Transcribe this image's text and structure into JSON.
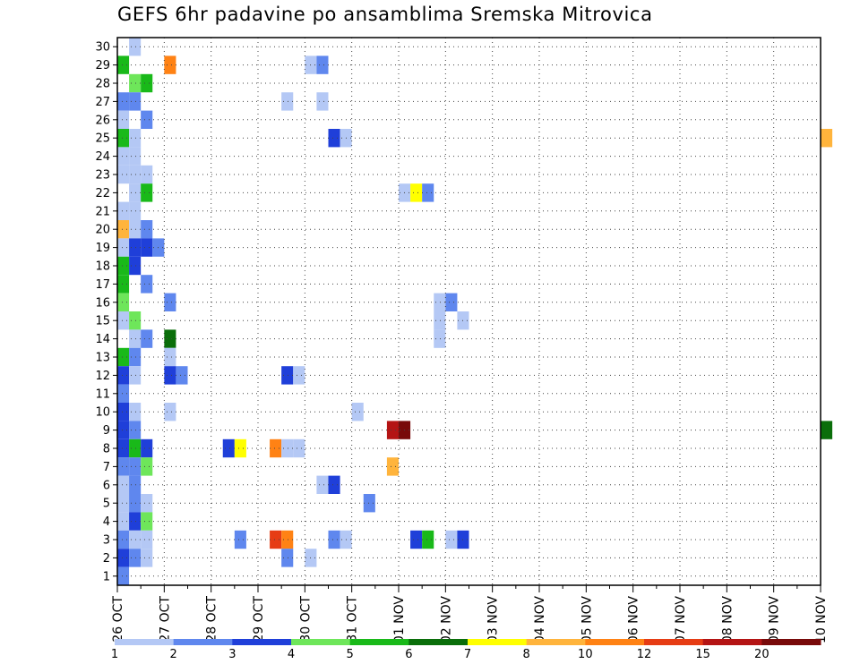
{
  "chart_data": {
    "type": "heatmap",
    "title": "GEFS 6hr padavine po ansamblima Sremska Mitrovica",
    "xlabel": "",
    "ylabel": "",
    "x_ticks": [
      "26 OCT",
      "27 OCT",
      "28 OCT",
      "29 OCT",
      "30 OCT",
      "31 OCT",
      "01 NOV",
      "02 NOV",
      "03 NOV",
      "04 NOV",
      "05 NOV",
      "06 NOV",
      "07 NOV",
      "08 NOV",
      "09 NOV",
      "10 NOV"
    ],
    "xlim": [
      0,
      60
    ],
    "steps_per_day": 4,
    "y_ticks": [
      1,
      2,
      3,
      4,
      5,
      6,
      7,
      8,
      9,
      10,
      11,
      12,
      13,
      14,
      15,
      16,
      17,
      18,
      19,
      20,
      21,
      22,
      23,
      24,
      25,
      26,
      27,
      28,
      29,
      30
    ],
    "ylim": [
      0.5,
      30.5
    ],
    "grid": true,
    "legend": {
      "placement": "bottom",
      "labels": [
        "1",
        "2",
        "3",
        "4",
        "5",
        "6",
        "7",
        "8",
        "10",
        "12",
        "15",
        "20"
      ],
      "colors": [
        "#b4c8f5",
        "#5f87ee",
        "#1f3fd9",
        "#6ee65a",
        "#19b919",
        "#0a6e0a",
        "#ffff00",
        "#ffb43c",
        "#ff8214",
        "#e63c14",
        "#b41414",
        "#780a0a"
      ]
    },
    "cells": [
      {
        "member": 30,
        "step": 1,
        "value": 1
      },
      {
        "member": 29,
        "step": 0,
        "value": 5
      },
      {
        "member": 29,
        "step": 4,
        "value": 10
      },
      {
        "member": 29,
        "step": 16,
        "value": 1
      },
      {
        "member": 29,
        "step": 17,
        "value": 2
      },
      {
        "member": 28,
        "step": 1,
        "value": 4
      },
      {
        "member": 28,
        "step": 2,
        "value": 5
      },
      {
        "member": 27,
        "step": 0,
        "value": 2
      },
      {
        "member": 27,
        "step": 1,
        "value": 2
      },
      {
        "member": 27,
        "step": 14,
        "value": 1
      },
      {
        "member": 27,
        "step": 17,
        "value": 1
      },
      {
        "member": 26,
        "step": 0,
        "value": 1
      },
      {
        "member": 26,
        "step": 2,
        "value": 2
      },
      {
        "member": 25,
        "step": 0,
        "value": 5
      },
      {
        "member": 25,
        "step": 1,
        "value": 1
      },
      {
        "member": 25,
        "step": 18,
        "value": 3
      },
      {
        "member": 25,
        "step": 19,
        "value": 1
      },
      {
        "member": 25,
        "step": 60,
        "value": 8
      },
      {
        "member": 24,
        "step": 0,
        "value": 1
      },
      {
        "member": 24,
        "step": 1,
        "value": 1
      },
      {
        "member": 23,
        "step": 0,
        "value": 1
      },
      {
        "member": 23,
        "step": 1,
        "value": 1
      },
      {
        "member": 23,
        "step": 2,
        "value": 1
      },
      {
        "member": 22,
        "step": 1,
        "value": 1
      },
      {
        "member": 22,
        "step": 2,
        "value": 5
      },
      {
        "member": 22,
        "step": 24,
        "value": 1
      },
      {
        "member": 22,
        "step": 25,
        "value": 7
      },
      {
        "member": 22,
        "step": 26,
        "value": 2
      },
      {
        "member": 21,
        "step": 0,
        "value": 1
      },
      {
        "member": 21,
        "step": 1,
        "value": 1
      },
      {
        "member": 20,
        "step": 0,
        "value": 8
      },
      {
        "member": 20,
        "step": 1,
        "value": 1
      },
      {
        "member": 20,
        "step": 2,
        "value": 2
      },
      {
        "member": 19,
        "step": 0,
        "value": 1
      },
      {
        "member": 19,
        "step": 1,
        "value": 3
      },
      {
        "member": 19,
        "step": 2,
        "value": 3
      },
      {
        "member": 19,
        "step": 3,
        "value": 2
      },
      {
        "member": 18,
        "step": 0,
        "value": 5
      },
      {
        "member": 18,
        "step": 1,
        "value": 3
      },
      {
        "member": 17,
        "step": 0,
        "value": 5
      },
      {
        "member": 17,
        "step": 2,
        "value": 2
      },
      {
        "member": 16,
        "step": 0,
        "value": 4
      },
      {
        "member": 16,
        "step": 4,
        "value": 2
      },
      {
        "member": 16,
        "step": 27,
        "value": 1
      },
      {
        "member": 16,
        "step": 28,
        "value": 2
      },
      {
        "member": 15,
        "step": 0,
        "value": 1
      },
      {
        "member": 15,
        "step": 1,
        "value": 4
      },
      {
        "member": 15,
        "step": 27,
        "value": 1
      },
      {
        "member": 15,
        "step": 29,
        "value": 1
      },
      {
        "member": 14,
        "step": 1,
        "value": 1
      },
      {
        "member": 14,
        "step": 2,
        "value": 2
      },
      {
        "member": 14,
        "step": 4,
        "value": 6
      },
      {
        "member": 14,
        "step": 27,
        "value": 1
      },
      {
        "member": 13,
        "step": 0,
        "value": 5
      },
      {
        "member": 13,
        "step": 1,
        "value": 2
      },
      {
        "member": 13,
        "step": 4,
        "value": 1
      },
      {
        "member": 12,
        "step": 0,
        "value": 3
      },
      {
        "member": 12,
        "step": 1,
        "value": 1
      },
      {
        "member": 12,
        "step": 4,
        "value": 3
      },
      {
        "member": 12,
        "step": 5,
        "value": 2
      },
      {
        "member": 12,
        "step": 14,
        "value": 3
      },
      {
        "member": 12,
        "step": 15,
        "value": 1
      },
      {
        "member": 11,
        "step": 0,
        "value": 2
      },
      {
        "member": 10,
        "step": 0,
        "value": 3
      },
      {
        "member": 10,
        "step": 1,
        "value": 1
      },
      {
        "member": 10,
        "step": 4,
        "value": 1
      },
      {
        "member": 10,
        "step": 20,
        "value": 1
      },
      {
        "member": 9,
        "step": 0,
        "value": 3
      },
      {
        "member": 9,
        "step": 1,
        "value": 2
      },
      {
        "member": 9,
        "step": 23,
        "value": 15
      },
      {
        "member": 9,
        "step": 24,
        "value": 20
      },
      {
        "member": 9,
        "step": 60,
        "value": 6
      },
      {
        "member": 8,
        "step": 0,
        "value": 3
      },
      {
        "member": 8,
        "step": 1,
        "value": 5
      },
      {
        "member": 8,
        "step": 2,
        "value": 3
      },
      {
        "member": 8,
        "step": 9,
        "value": 3
      },
      {
        "member": 8,
        "step": 10,
        "value": 7
      },
      {
        "member": 8,
        "step": 13,
        "value": 10
      },
      {
        "member": 8,
        "step": 14,
        "value": 1
      },
      {
        "member": 8,
        "step": 15,
        "value": 1
      },
      {
        "member": 7,
        "step": 0,
        "value": 2
      },
      {
        "member": 7,
        "step": 1,
        "value": 2
      },
      {
        "member": 7,
        "step": 2,
        "value": 4
      },
      {
        "member": 7,
        "step": 23,
        "value": 8
      },
      {
        "member": 6,
        "step": 0,
        "value": 1
      },
      {
        "member": 6,
        "step": 1,
        "value": 2
      },
      {
        "member": 6,
        "step": 17,
        "value": 1
      },
      {
        "member": 6,
        "step": 18,
        "value": 3
      },
      {
        "member": 5,
        "step": 0,
        "value": 1
      },
      {
        "member": 5,
        "step": 1,
        "value": 2
      },
      {
        "member": 5,
        "step": 2,
        "value": 1
      },
      {
        "member": 5,
        "step": 21,
        "value": 2
      },
      {
        "member": 4,
        "step": 0,
        "value": 1
      },
      {
        "member": 4,
        "step": 1,
        "value": 3
      },
      {
        "member": 4,
        "step": 2,
        "value": 4
      },
      {
        "member": 3,
        "step": 0,
        "value": 2
      },
      {
        "member": 3,
        "step": 1,
        "value": 1
      },
      {
        "member": 3,
        "step": 2,
        "value": 1
      },
      {
        "member": 3,
        "step": 10,
        "value": 2
      },
      {
        "member": 3,
        "step": 13,
        "value": 12
      },
      {
        "member": 3,
        "step": 14,
        "value": 10
      },
      {
        "member": 3,
        "step": 18,
        "value": 2
      },
      {
        "member": 3,
        "step": 19,
        "value": 1
      },
      {
        "member": 3,
        "step": 25,
        "value": 3
      },
      {
        "member": 3,
        "step": 26,
        "value": 5
      },
      {
        "member": 3,
        "step": 28,
        "value": 1
      },
      {
        "member": 3,
        "step": 29,
        "value": 3
      },
      {
        "member": 2,
        "step": 0,
        "value": 3
      },
      {
        "member": 2,
        "step": 1,
        "value": 2
      },
      {
        "member": 2,
        "step": 2,
        "value": 1
      },
      {
        "member": 2,
        "step": 14,
        "value": 2
      },
      {
        "member": 2,
        "step": 16,
        "value": 1
      },
      {
        "member": 1,
        "step": 0,
        "value": 2
      }
    ]
  }
}
